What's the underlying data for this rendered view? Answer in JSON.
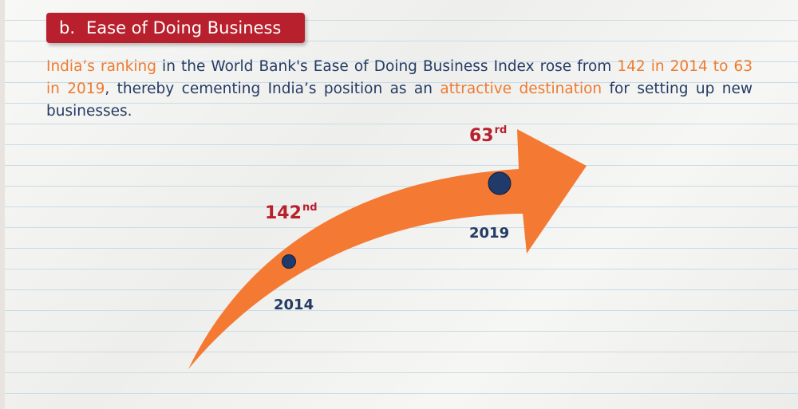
{
  "header": {
    "letter": "b.",
    "title": "Ease of Doing Business"
  },
  "intro": {
    "part1": "India’s ranking",
    "part2": " in the World Bank's Ease of Doing Business Index rose from ",
    "part3": "142 in 2014 to 63 in 2019",
    "part4": ", thereby cementing India’s position as an ",
    "part5": "attractive destination",
    "part6": " for setting up new businesses."
  },
  "points": [
    {
      "year": "2014",
      "rank": "142",
      "suffix": "nd"
    },
    {
      "year": "2019",
      "rank": "63",
      "suffix": "rd"
    }
  ],
  "colors": {
    "arrow": "#f47a33",
    "rank_text": "#b8202d",
    "body_text": "#243b64",
    "highlight": "#ef7a2e",
    "marker": "#1f3a6b"
  }
}
